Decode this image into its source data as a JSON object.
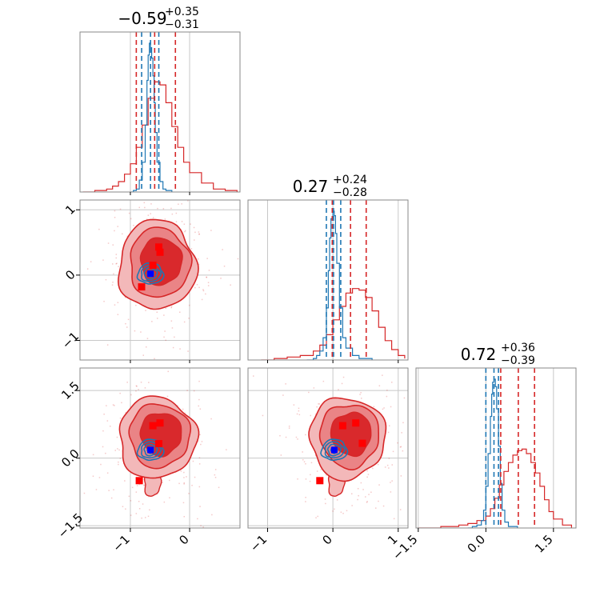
{
  "colors": {
    "sample": "#1f77b4",
    "red": "#d62728",
    "red_fill_outer": "#f3b8b9",
    "red_fill_mid": "#ea8486",
    "red_fill_inner": "#d9292c",
    "marker_red": "#ff0000",
    "marker_blue": "#0000ff",
    "grid": "#c8c8c8",
    "frame": "#888888"
  },
  "chart_data": {
    "type": "corner",
    "parameters": [
      {
        "title_main": "−0.59",
        "title_up": "+0.35",
        "title_down": "−0.31",
        "median": -0.59,
        "q_lo": -0.9,
        "q_hi": -0.24
      },
      {
        "title_main": "0.27",
        "title_up": "+0.24",
        "title_down": "−0.28",
        "median": 0.27,
        "q_lo": -0.01,
        "q_hi": 0.51
      },
      {
        "title_main": "0.72",
        "title_up": "+0.36",
        "title_down": "−0.39",
        "median": 0.72,
        "q_lo": 0.33,
        "q_hi": 1.08
      }
    ],
    "ranges": [
      [
        -1.85,
        0.85
      ],
      [
        -1.3,
        1.15
      ],
      [
        -1.55,
        2.0
      ]
    ],
    "ticks": [
      {
        "values": [
          -1,
          0
        ],
        "labels": [
          "−1",
          "0"
        ]
      },
      {
        "values": [
          -1,
          0,
          1
        ],
        "labels": [
          "−1",
          "0",
          "1"
        ]
      },
      {
        "values": [
          -1.5,
          0.0,
          1.5
        ],
        "labels": [
          "−1.5",
          "0.0",
          "1.5"
        ]
      }
    ],
    "blue_quantiles": [
      [
        -0.81,
        -0.66,
        -0.52
      ],
      [
        -0.1,
        0.01,
        0.12
      ],
      [
        0.0,
        0.18,
        0.28
      ]
    ],
    "red_quantiles": [
      [
        -0.9,
        -0.59,
        -0.24
      ],
      [
        -0.01,
        0.27,
        0.51
      ],
      [
        0.33,
        0.72,
        1.08
      ]
    ],
    "truth": [
      -0.66,
      0.02,
      0.18
    ],
    "blue_hist": [
      {
        "x": [
          -1.0,
          -0.95,
          -0.9,
          -0.85,
          -0.8,
          -0.75,
          -0.72,
          -0.7,
          -0.68,
          -0.66,
          -0.64,
          -0.62,
          -0.6,
          -0.58,
          -0.55,
          -0.5,
          -0.45,
          -0.4,
          -0.3
        ],
        "y": [
          0,
          0.01,
          0.02,
          0.08,
          0.2,
          0.45,
          0.75,
          0.92,
          1.0,
          0.97,
          0.9,
          0.78,
          0.6,
          0.4,
          0.2,
          0.07,
          0.02,
          0.01,
          0
        ]
      },
      {
        "x": [
          -0.4,
          -0.3,
          -0.25,
          -0.2,
          -0.15,
          -0.1,
          -0.07,
          -0.05,
          -0.03,
          0.0,
          0.02,
          0.04,
          0.06,
          0.1,
          0.15,
          0.2,
          0.3,
          0.4,
          0.6
        ],
        "y": [
          0,
          0.01,
          0.03,
          0.06,
          0.15,
          0.35,
          0.6,
          0.82,
          0.95,
          1.0,
          0.97,
          0.85,
          0.65,
          0.35,
          0.15,
          0.08,
          0.03,
          0.01,
          0
        ]
      },
      {
        "x": [
          -0.4,
          -0.3,
          -0.2,
          -0.1,
          -0.05,
          0.0,
          0.05,
          0.1,
          0.13,
          0.15,
          0.18,
          0.21,
          0.24,
          0.28,
          0.32,
          0.36,
          0.42,
          0.5,
          0.7
        ],
        "y": [
          0,
          0.01,
          0.02,
          0.05,
          0.12,
          0.28,
          0.5,
          0.75,
          0.9,
          0.98,
          1.0,
          0.95,
          0.8,
          0.55,
          0.3,
          0.12,
          0.04,
          0.01,
          0
        ]
      }
    ],
    "red_hist": [
      {
        "x": [
          -1.8,
          -1.6,
          -1.4,
          -1.3,
          -1.2,
          -1.1,
          -1.0,
          -0.9,
          -0.8,
          -0.7,
          -0.6,
          -0.5,
          -0.4,
          -0.3,
          -0.2,
          -0.1,
          0.0,
          0.2,
          0.4,
          0.6,
          0.8
        ],
        "y": [
          0,
          0.01,
          0.02,
          0.04,
          0.07,
          0.12,
          0.19,
          0.3,
          0.45,
          0.63,
          0.74,
          0.72,
          0.6,
          0.44,
          0.3,
          0.2,
          0.13,
          0.06,
          0.02,
          0.01,
          0
        ]
      },
      {
        "x": [
          -1.1,
          -0.9,
          -0.7,
          -0.5,
          -0.3,
          -0.2,
          -0.1,
          0.0,
          0.1,
          0.2,
          0.3,
          0.4,
          0.5,
          0.6,
          0.7,
          0.8,
          0.9,
          1.0,
          1.1
        ],
        "y": [
          0,
          0.01,
          0.02,
          0.03,
          0.06,
          0.1,
          0.17,
          0.27,
          0.36,
          0.45,
          0.48,
          0.47,
          0.42,
          0.33,
          0.22,
          0.13,
          0.07,
          0.03,
          0.01
        ]
      },
      {
        "x": [
          -1.5,
          -1.0,
          -0.6,
          -0.4,
          -0.2,
          0.0,
          0.1,
          0.2,
          0.3,
          0.4,
          0.5,
          0.6,
          0.7,
          0.8,
          0.9,
          1.0,
          1.1,
          1.2,
          1.3,
          1.4,
          1.5,
          1.7,
          1.9
        ],
        "y": [
          0,
          0.01,
          0.02,
          0.03,
          0.05,
          0.08,
          0.13,
          0.2,
          0.29,
          0.38,
          0.44,
          0.49,
          0.52,
          0.53,
          0.5,
          0.44,
          0.37,
          0.28,
          0.19,
          0.11,
          0.06,
          0.02,
          0
        ]
      }
    ],
    "red_markers": [
      [
        [
          -0.52,
          0.43
        ],
        [
          -0.5,
          0.35
        ],
        [
          -0.62,
          0.15
        ],
        [
          -0.81,
          -0.18
        ]
      ],
      [
        [
          -0.62,
          0.72
        ],
        [
          -0.5,
          0.78
        ],
        [
          -0.52,
          0.32
        ],
        [
          -0.85,
          -0.5
        ]
      ],
      [
        [
          0.15,
          0.72
        ],
        [
          0.35,
          0.78
        ],
        [
          0.45,
          0.33
        ],
        [
          -0.2,
          -0.5
        ]
      ]
    ],
    "blue_marker": [
      [
        -0.66,
        0.02
      ],
      [
        -0.66,
        0.18
      ],
      [
        0.02,
        0.18
      ]
    ]
  }
}
